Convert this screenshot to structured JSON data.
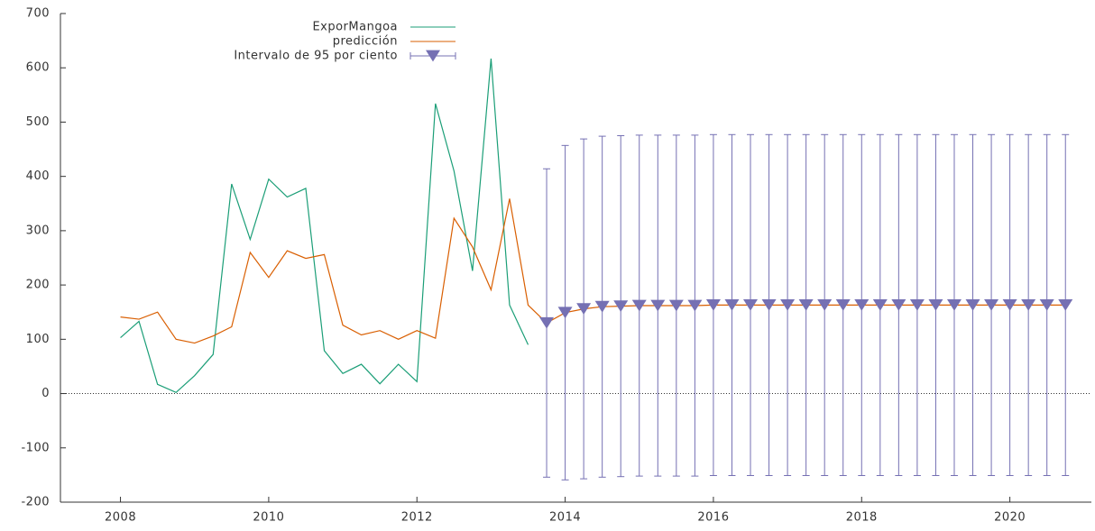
{
  "chart_data": {
    "type": "line",
    "x": [
      2008,
      2008.25,
      2008.5,
      2008.75,
      2009,
      2009.25,
      2009.5,
      2009.75,
      2010,
      2010.25,
      2010.5,
      2010.75,
      2011,
      2011.25,
      2011.5,
      2011.75,
      2012,
      2012.25,
      2012.5,
      2012.75,
      2013,
      2013.25,
      2013.5,
      2013.75,
      2014,
      2014.25,
      2014.5,
      2014.75,
      2015,
      2015.25,
      2015.5,
      2015.75,
      2016,
      2016.25,
      2016.5,
      2016.75,
      2017,
      2017.25,
      2017.5,
      2017.75,
      2018,
      2018.25,
      2018.5,
      2018.75,
      2019,
      2019.25,
      2019.5,
      2019.75,
      2020,
      2020.25,
      2020.5,
      2020.75
    ],
    "series": [
      {
        "name": "ExporMangoa",
        "color": "#1b9e77",
        "values": [
          103,
          133,
          17,
          2,
          33,
          72,
          386,
          284,
          395,
          362,
          378,
          79,
          37,
          54,
          18,
          54,
          22,
          534,
          410,
          226,
          617,
          163,
          90,
          null,
          null,
          null,
          null,
          null,
          null,
          null,
          null,
          null,
          null,
          null,
          null,
          null,
          null,
          null,
          null,
          null,
          null,
          null,
          null,
          null,
          null,
          null,
          null,
          null,
          null,
          null,
          null,
          null
        ]
      },
      {
        "name": "predicción",
        "color": "#d95f02",
        "values": [
          141,
          137,
          150,
          100,
          93,
          106,
          123,
          260,
          214,
          263,
          249,
          256,
          126,
          108,
          116,
          100,
          116,
          102,
          323,
          270,
          191,
          359,
          163,
          130,
          149,
          156,
          160,
          161,
          162,
          162,
          162,
          162,
          163,
          163,
          163,
          163,
          163,
          163,
          163,
          163,
          163,
          163,
          163,
          163,
          163,
          163,
          163,
          163,
          163,
          163,
          163,
          163
        ]
      },
      {
        "name": "Intervalo de 95 por ciento",
        "color": "#7570b3",
        "values": [
          null,
          null,
          null,
          null,
          null,
          null,
          null,
          null,
          null,
          null,
          null,
          null,
          null,
          null,
          null,
          null,
          null,
          null,
          null,
          null,
          null,
          null,
          null,
          130,
          149,
          156,
          160,
          161,
          162,
          162,
          162,
          162,
          163,
          163,
          163,
          163,
          163,
          163,
          163,
          163,
          163,
          163,
          163,
          163,
          163,
          163,
          163,
          163,
          163,
          163,
          163,
          163
        ],
        "errors": [
          null,
          null,
          null,
          null,
          null,
          null,
          null,
          null,
          null,
          null,
          null,
          null,
          null,
          null,
          null,
          null,
          null,
          null,
          null,
          null,
          null,
          null,
          null,
          284,
          308,
          313,
          314,
          314,
          314,
          314,
          314,
          314,
          314,
          314,
          314,
          314,
          314,
          314,
          314,
          314,
          314,
          314,
          314,
          314,
          314,
          314,
          314,
          314,
          314,
          314,
          314,
          314
        ]
      }
    ],
    "xlim": [
      2007.19,
      2021.1
    ],
    "ylim": [
      -200,
      700
    ],
    "xticks": [
      2008,
      2010,
      2012,
      2014,
      2016,
      2018,
      2020
    ],
    "yticks": [
      -200,
      -100,
      0,
      100,
      200,
      300,
      400,
      500,
      600,
      700
    ],
    "zero_line": true
  }
}
